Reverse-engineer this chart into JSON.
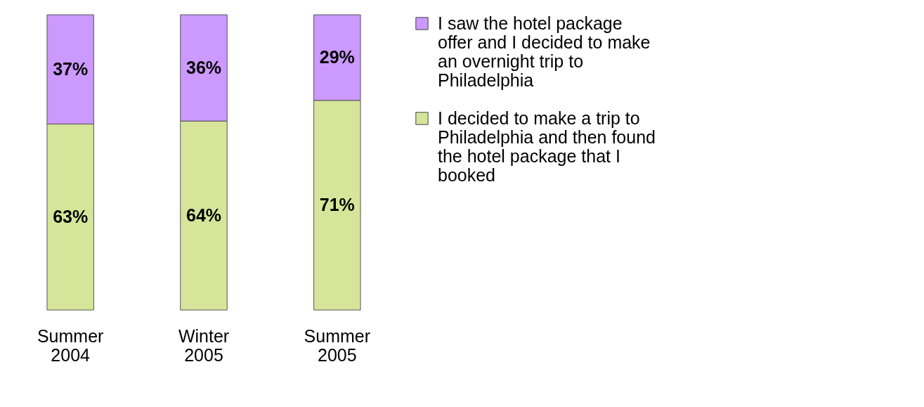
{
  "chart_data": {
    "type": "bar",
    "stacked": true,
    "categories": [
      "Summer 2004",
      "Winter 2005",
      "Summer 2005"
    ],
    "legend": "right",
    "series": [
      {
        "name": "I decided to make a trip to Philadelphia and then found the hotel package that I booked",
        "color": "#d6e59a",
        "values": [
          63,
          64,
          71
        ],
        "value_labels": [
          "63%",
          "64%",
          "71%"
        ]
      },
      {
        "name": "I saw the hotel package offer and I decided to make an overnight trip to Philadelphia",
        "color": "#cc99ff",
        "values": [
          37,
          36,
          29
        ],
        "value_labels": [
          "37%",
          "36%",
          "29%"
        ]
      }
    ]
  }
}
